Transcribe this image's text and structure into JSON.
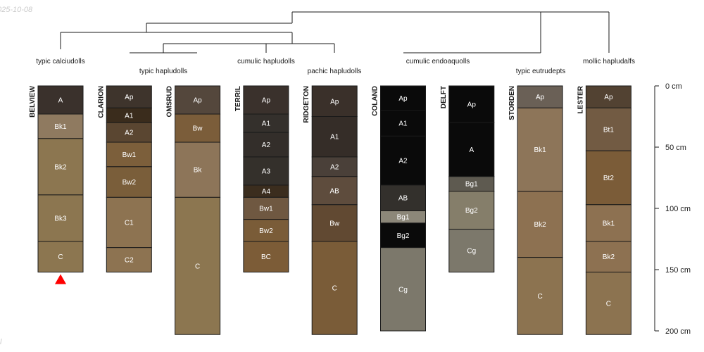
{
  "stamp": {
    "date": "025-10-08",
    "corner": "l"
  },
  "colors": {
    "line": "#1a1a1a",
    "marker": "#ff0000",
    "text_on_dark": "#ffffff"
  },
  "dendrogram_labels": [
    "typic calciudolls",
    "typic hapludolls",
    "cumulic hapludolls",
    "pachic hapludolls",
    "cumulic endoaquolls",
    "typic eutrudepts",
    "mollic hapludalfs"
  ],
  "depth_axis": {
    "unit": "cm",
    "ticks": [
      {
        "value": 0,
        "label": "0 cm"
      },
      {
        "value": 50,
        "label": "50 cm"
      },
      {
        "value": 100,
        "label": "100 cm"
      },
      {
        "value": 150,
        "label": "150 cm"
      },
      {
        "value": 200,
        "label": "200 cm"
      }
    ]
  },
  "profiles": [
    {
      "name": "BELVIEW",
      "marker": true,
      "horizons": [
        {
          "name": "A",
          "top": 0,
          "bottom": 23,
          "color": "#3a312c"
        },
        {
          "name": "Bk1",
          "top": 23,
          "bottom": 43,
          "color": "#8f7a60"
        },
        {
          "name": "Bk2",
          "top": 43,
          "bottom": 89,
          "color": "#8c7650"
        },
        {
          "name": "Bk3",
          "top": 89,
          "bottom": 127,
          "color": "#8c7650"
        },
        {
          "name": "C",
          "top": 127,
          "bottom": 152,
          "color": "#8c7650"
        }
      ]
    },
    {
      "name": "CLARION",
      "horizons": [
        {
          "name": "Ap",
          "top": 0,
          "bottom": 18,
          "color": "#3e342c"
        },
        {
          "name": "A1",
          "top": 18,
          "bottom": 30,
          "color": "#3a2c1c"
        },
        {
          "name": "A2",
          "top": 30,
          "bottom": 46,
          "color": "#5a4631"
        },
        {
          "name": "Bw1",
          "top": 46,
          "bottom": 66,
          "color": "#7c5f3b"
        },
        {
          "name": "Bw2",
          "top": 66,
          "bottom": 91,
          "color": "#7a5e3a"
        },
        {
          "name": "C1",
          "top": 91,
          "bottom": 132,
          "color": "#8d7351"
        },
        {
          "name": "C2",
          "top": 132,
          "bottom": 152,
          "color": "#8d7351"
        }
      ]
    },
    {
      "name": "OMSRUD",
      "horizons": [
        {
          "name": "Ap",
          "top": 0,
          "bottom": 23,
          "color": "#54473c"
        },
        {
          "name": "Bw",
          "top": 23,
          "bottom": 46,
          "color": "#7b5d3a"
        },
        {
          "name": "Bk",
          "top": 46,
          "bottom": 91,
          "color": "#8d7559"
        },
        {
          "name": "C",
          "top": 91,
          "bottom": 203,
          "color": "#8c7650"
        }
      ]
    },
    {
      "name": "TERRIL",
      "horizons": [
        {
          "name": "Ap",
          "top": 0,
          "bottom": 23,
          "color": "#3a312c"
        },
        {
          "name": "A1",
          "top": 23,
          "bottom": 38,
          "color": "#34302c"
        },
        {
          "name": "A2",
          "top": 38,
          "bottom": 58,
          "color": "#332e2a"
        },
        {
          "name": "A3",
          "top": 58,
          "bottom": 81,
          "color": "#34302b"
        },
        {
          "name": "A4",
          "top": 81,
          "bottom": 91,
          "color": "#3b2d1e"
        },
        {
          "name": "Bw1",
          "top": 91,
          "bottom": 109,
          "color": "#6f5841"
        },
        {
          "name": "Bw2",
          "top": 109,
          "bottom": 127,
          "color": "#7a5c38"
        },
        {
          "name": "BC",
          "top": 127,
          "bottom": 152,
          "color": "#7c5c37"
        }
      ]
    },
    {
      "name": "RIDGETON",
      "horizons": [
        {
          "name": "Ap",
          "top": 0,
          "bottom": 25,
          "color": "#3a302a"
        },
        {
          "name": "A1",
          "top": 25,
          "bottom": 58,
          "color": "#352d28"
        },
        {
          "name": "A2",
          "top": 58,
          "bottom": 74,
          "color": "#4a4039"
        },
        {
          "name": "AB",
          "top": 74,
          "bottom": 97,
          "color": "#5e4c3d"
        },
        {
          "name": "Bw",
          "top": 97,
          "bottom": 127,
          "color": "#614932"
        },
        {
          "name": "C",
          "top": 127,
          "bottom": 203,
          "color": "#7a5c38"
        }
      ]
    },
    {
      "name": "COLAND",
      "horizons": [
        {
          "name": "Ap",
          "top": 0,
          "bottom": 20,
          "color": "#0a0a0a"
        },
        {
          "name": "A1",
          "top": 20,
          "bottom": 41,
          "color": "#0a0a0a"
        },
        {
          "name": "A2",
          "top": 41,
          "bottom": 81,
          "color": "#0a0a0a"
        },
        {
          "name": "AB",
          "top": 81,
          "bottom": 102,
          "color": "#33302c"
        },
        {
          "name": "Bg1",
          "top": 102,
          "bottom": 112,
          "color": "#8c8779"
        },
        {
          "name": "Bg2",
          "top": 112,
          "bottom": 132,
          "color": "#0a0a0a"
        },
        {
          "name": "Cg",
          "top": 132,
          "bottom": 200,
          "color": "#7c786b"
        }
      ]
    },
    {
      "name": "DELFT",
      "horizons": [
        {
          "name": "Ap",
          "top": 0,
          "bottom": 30,
          "color": "#0a0a0a"
        },
        {
          "name": "A",
          "top": 30,
          "bottom": 74,
          "color": "#0a0a0a"
        },
        {
          "name": "Bg1",
          "top": 74,
          "bottom": 86,
          "color": "#5e5a50"
        },
        {
          "name": "Bg2",
          "top": 86,
          "bottom": 117,
          "color": "#857e6a"
        },
        {
          "name": "Cg",
          "top": 117,
          "bottom": 152,
          "color": "#7c786b"
        }
      ]
    },
    {
      "name": "STORDEN",
      "horizons": [
        {
          "name": "Ap",
          "top": 0,
          "bottom": 18,
          "color": "#6a6056"
        },
        {
          "name": "Bk1",
          "top": 18,
          "bottom": 86,
          "color": "#8d7559"
        },
        {
          "name": "Bk2",
          "top": 86,
          "bottom": 140,
          "color": "#8d7151"
        },
        {
          "name": "C",
          "top": 140,
          "bottom": 203,
          "color": "#8c7350"
        }
      ]
    },
    {
      "name": "LESTER",
      "horizons": [
        {
          "name": "Ap",
          "top": 0,
          "bottom": 18,
          "color": "#524232"
        },
        {
          "name": "Bt1",
          "top": 18,
          "bottom": 53,
          "color": "#725b43"
        },
        {
          "name": "Bt2",
          "top": 53,
          "bottom": 97,
          "color": "#7b5c38"
        },
        {
          "name": "Bk1",
          "top": 97,
          "bottom": 127,
          "color": "#8d7151"
        },
        {
          "name": "Bk2",
          "top": 127,
          "bottom": 152,
          "color": "#8d7151"
        },
        {
          "name": "C",
          "top": 152,
          "bottom": 203,
          "color": "#8c7350"
        }
      ]
    }
  ]
}
